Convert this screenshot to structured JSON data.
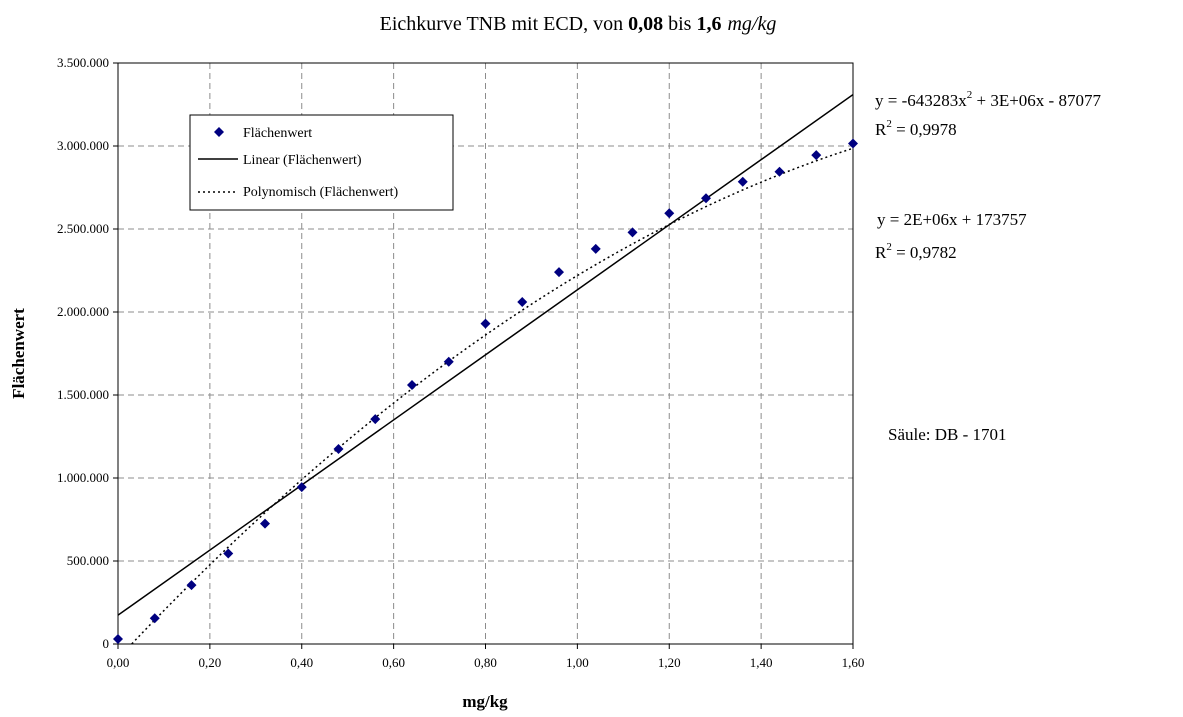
{
  "chart_data": {
    "type": "scatter",
    "title": {
      "prefix": "Eichkurve TNB mit ECD, von ",
      "from": "0,08",
      "mid": " bis ",
      "to": "1,6",
      "unit": "mg/kg"
    },
    "xlabel": "mg/kg",
    "ylabel": "Flächenwert",
    "xlim": [
      0,
      1.6
    ],
    "ylim": [
      0,
      3500000
    ],
    "x_ticks": [
      "0,00",
      "0,20",
      "0,40",
      "0,60",
      "0,80",
      "1,00",
      "1,20",
      "1,40",
      "1,60"
    ],
    "x_tick_values": [
      0,
      0.2,
      0.4,
      0.6,
      0.8,
      1.0,
      1.2,
      1.4,
      1.6
    ],
    "y_ticks": [
      "0",
      "500.000",
      "1.000.000",
      "1.500.000",
      "2.000.000",
      "2.500.000",
      "3.000.000",
      "3.500.000"
    ],
    "y_tick_values": [
      0,
      500000,
      1000000,
      1500000,
      2000000,
      2500000,
      3000000,
      3500000
    ],
    "grid": true,
    "legend_position": "top-left",
    "series": [
      {
        "name": "Flächenwert",
        "kind": "markers",
        "marker": "diamond",
        "color": "#000080",
        "x": [
          0.0,
          0.08,
          0.16,
          0.24,
          0.32,
          0.4,
          0.48,
          0.56,
          0.64,
          0.72,
          0.8,
          0.88,
          0.96,
          1.04,
          1.12,
          1.2,
          1.28,
          1.36,
          1.44,
          1.52,
          1.6
        ],
        "y": [
          30000,
          155000,
          355000,
          545000,
          725000,
          945000,
          1175000,
          1355000,
          1560000,
          1700000,
          1930000,
          2060000,
          2240000,
          2380000,
          2480000,
          2595000,
          2685000,
          2785000,
          2845000,
          2945000,
          3015000
        ]
      },
      {
        "name": "Linear (Flächenwert)",
        "kind": "line",
        "style": "solid",
        "color": "#000000",
        "slope": 1960000,
        "intercept": 173757
      },
      {
        "name": "Polynomisch (Flächenwert)",
        "kind": "line",
        "style": "dotted",
        "color": "#000000",
        "coefficients": [
          -643283,
          2950000,
          -87077
        ]
      }
    ],
    "equations": {
      "poly_eq_a": "y = -643283x",
      "poly_eq_exp": "2",
      "poly_eq_b": " + 3E+06x - 87077",
      "poly_r2_a": "R",
      "poly_r2_exp": "2",
      "poly_r2_b": " = 0,9978",
      "lin_eq": "y = 2E+06x + 173757",
      "lin_r2_a": "R",
      "lin_r2_exp": "2",
      "lin_r2_b": " = 0,9782"
    },
    "annotation": "Säule: DB - 1701"
  }
}
